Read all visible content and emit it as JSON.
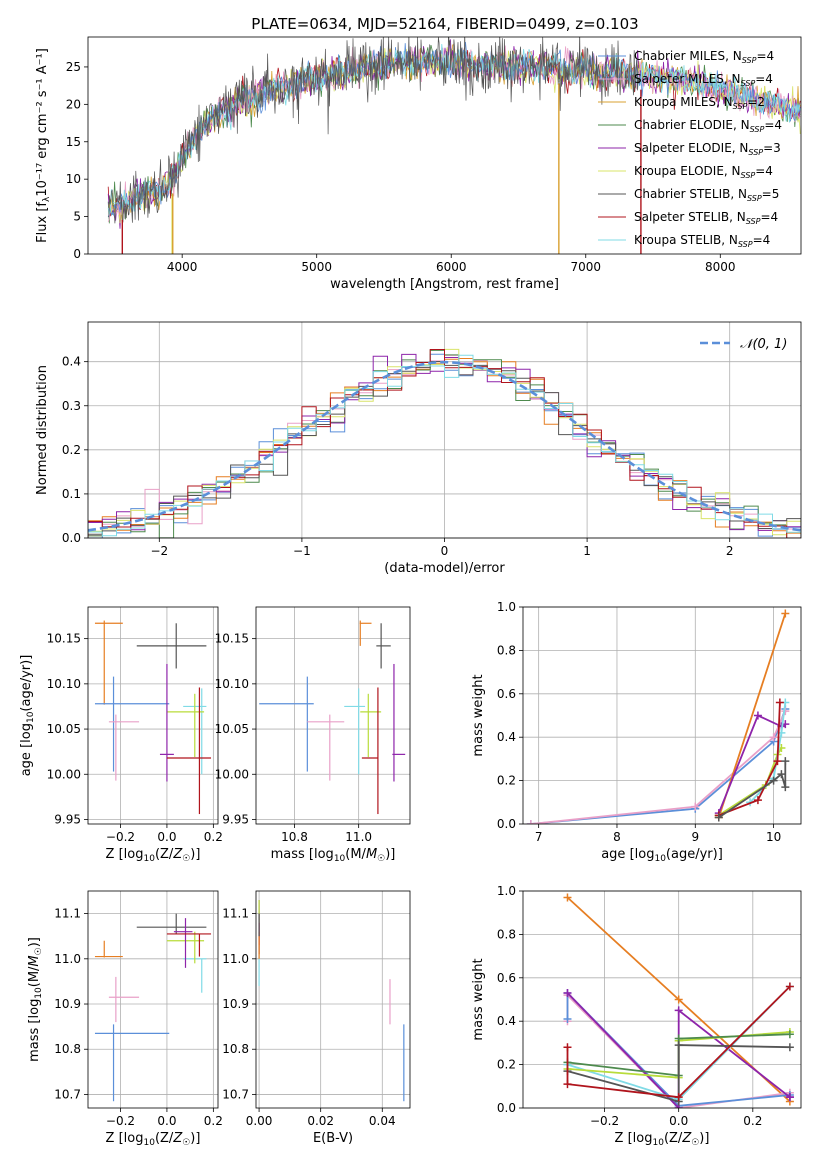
{
  "figure": {
    "title": "PLATE=0634, MJD=52164, FIBERID=0499, z=0.103"
  },
  "colors": {
    "chabrier_miles": "#5b8fd9",
    "salpeter_miles": "#e9a0c8",
    "kroupa_miles": "#d8a030",
    "chabrier_elodie": "#4d8a4d",
    "salpeter_elodie": "#8e24aa",
    "kroupa_elodie": "#d9e46a",
    "chabrier_stelib": "#555555",
    "salpeter_stelib": "#b0141c",
    "kroupa_stelib": "#80dbe6",
    "orange": "#e67e22",
    "lime": "#b8dc3a",
    "gaussian": "#5b8fd9"
  },
  "chart_data": [
    {
      "id": "spectrum",
      "type": "line",
      "xlabel": "wavelength [Angstrom, rest frame]",
      "ylabel": "Flux [fλ10⁻¹⁷ erg cm⁻² s⁻¹ A⁻¹]",
      "xlim": [
        3300,
        8600
      ],
      "ylim": [
        0,
        29
      ],
      "xticks": [
        4000,
        5000,
        6000,
        7000,
        8000
      ],
      "yticks": [
        0,
        5,
        10,
        15,
        20,
        25
      ],
      "grid": false,
      "legend_position": "right",
      "legend": [
        {
          "label": "Chabrier MILES, N",
          "sub": "SSP",
          "n": "=4",
          "color": "chabrier_miles"
        },
        {
          "label": "Salpeter MILES, N",
          "sub": "SSP",
          "n": "=4",
          "color": "salpeter_miles"
        },
        {
          "label": "Kroupa MILES, N",
          "sub": "SSP",
          "n": "=2",
          "color": "kroupa_miles"
        },
        {
          "label": "Chabrier ELODIE, N",
          "sub": "SSP",
          "n": "=4",
          "color": "chabrier_elodie"
        },
        {
          "label": "Salpeter ELODIE, N",
          "sub": "SSP",
          "n": "=3",
          "color": "salpeter_elodie"
        },
        {
          "label": "Kroupa ELODIE, N",
          "sub": "SSP",
          "n": "=4",
          "color": "kroupa_elodie"
        },
        {
          "label": "Chabrier STELIB, N",
          "sub": "SSP",
          "n": "=5",
          "color": "chabrier_stelib"
        },
        {
          "label": "Salpeter STELIB, N",
          "sub": "SSP",
          "n": "=4",
          "color": "salpeter_stelib"
        },
        {
          "label": "Kroupa STELIB, N",
          "sub": "SSP",
          "n": "=4",
          "color": "kroupa_stelib"
        }
      ],
      "continuum_x": [
        3450,
        3550,
        3650,
        3750,
        3850,
        3950,
        4050,
        4200,
        4400,
        4600,
        4800,
        5000,
        5200,
        5400,
        5600,
        5800,
        6000,
        6200,
        6400,
        6600,
        6800,
        7000,
        7200,
        7400,
        7600,
        7800,
        8000,
        8200,
        8400,
        8600
      ],
      "continuum_y": [
        6.0,
        6.5,
        7.5,
        8.0,
        8.5,
        10.5,
        14.5,
        18.0,
        20.0,
        21.5,
        22.5,
        23.5,
        24.2,
        25.0,
        25.5,
        25.7,
        25.8,
        25.5,
        25.2,
        25.0,
        24.8,
        24.5,
        24.2,
        24.0,
        23.5,
        23.0,
        22.0,
        21.0,
        20.0,
        19.0
      ],
      "data_end_x": 7400,
      "model_end_x": 8600
    },
    {
      "id": "residuals",
      "type": "histogram",
      "xlabel": "(data-model)/error",
      "ylabel": "Normed distribution",
      "xlim": [
        -2.5,
        2.5
      ],
      "ylim": [
        0,
        0.49
      ],
      "xticks": [
        -2,
        -1,
        0,
        1,
        2
      ],
      "xtick_labels": [
        "−2",
        "−1",
        "0",
        "1",
        "2"
      ],
      "yticks": [
        0.0,
        0.1,
        0.2,
        0.3,
        0.4
      ],
      "yticklabels": [
        "0.0",
        "0.1",
        "0.2",
        "0.3",
        "0.4"
      ],
      "grid": true,
      "legend": [
        {
          "label": "𝒩(0, 1)",
          "color": "gaussian",
          "dashed": true
        }
      ],
      "bin_width": 0.1,
      "series_colors": [
        "chabrier_miles",
        "salpeter_miles",
        "orange",
        "chabrier_elodie",
        "salpeter_elodie",
        "kroupa_elodie",
        "chabrier_stelib",
        "salpeter_stelib",
        "kroupa_stelib"
      ]
    },
    {
      "id": "age-vs-Z",
      "type": "errorbar",
      "xlabel": "Z [log10(Z/Z☉)]",
      "ylabel": "age  [log10(age/yr)]",
      "xlim": [
        -0.34,
        0.22
      ],
      "ylim": [
        9.945,
        10.185
      ],
      "xticks": [
        -0.2,
        0.0,
        0.2
      ],
      "xtick_labels": [
        "−0.2",
        "0.0",
        "0.2"
      ],
      "yticks": [
        9.95,
        10.0,
        10.05,
        10.1,
        10.15
      ],
      "yticklabels": [
        "9.95",
        "10.00",
        "10.05",
        "10.10",
        "10.15"
      ],
      "grid": true,
      "points": [
        {
          "x": -0.27,
          "xerr": [
            0.04,
            0.08
          ],
          "y": 10.167,
          "yerr": [
            0.09,
            0.003
          ],
          "color": "orange"
        },
        {
          "x": 0.04,
          "xerr": [
            0.17,
            0.13
          ],
          "y": 10.142,
          "yerr": [
            0.025,
            0.025
          ],
          "color": "chabrier_stelib"
        },
        {
          "x": -0.23,
          "xerr": [
            0.08,
            0.24
          ],
          "y": 10.078,
          "yerr": [
            0.075,
            0.03
          ],
          "color": "chabrier_miles"
        },
        {
          "x": 0.15,
          "xerr": [
            0.08,
            0.02
          ],
          "y": 10.075,
          "yerr": [
            0.075,
            0.02
          ],
          "color": "kroupa_stelib"
        },
        {
          "x": 0.12,
          "xerr": [
            0.12,
            0.04
          ],
          "y": 10.069,
          "yerr": [
            0.05,
            0.02
          ],
          "color": "lime"
        },
        {
          "x": -0.22,
          "xerr": [
            0.03,
            0.1
          ],
          "y": 10.058,
          "yerr": [
            0.065,
            0.008
          ],
          "color": "salpeter_miles"
        },
        {
          "x": 0.0,
          "xerr": [
            0.03,
            0.03
          ],
          "y": 10.022,
          "yerr": [
            0.03,
            0.1
          ],
          "color": "salpeter_elodie"
        },
        {
          "x": 0.14,
          "xerr": [
            0.14,
            0.05
          ],
          "y": 10.018,
          "yerr": [
            0.062,
            0.078
          ],
          "color": "salpeter_stelib"
        }
      ]
    },
    {
      "id": "age-vs-mass",
      "type": "errorbar",
      "xlabel": "mass [log10(M/M☉)]",
      "ylabel": "",
      "xlim": [
        10.68,
        11.16
      ],
      "ylim": [
        9.945,
        10.185
      ],
      "xticks": [
        10.8,
        11.0
      ],
      "xtick_labels": [
        "10.8",
        "11.0"
      ],
      "yticks": [
        9.95,
        10.0,
        10.05,
        10.1,
        10.15
      ],
      "yticklabels": [
        "9.95",
        "10.00",
        "10.05",
        "10.10",
        "10.15"
      ],
      "grid": true,
      "points": [
        {
          "x": 11.005,
          "xerr": [
            0.002,
            0.035
          ],
          "y": 10.167,
          "yerr": [
            0.025,
            0.003
          ],
          "color": "orange"
        },
        {
          "x": 11.07,
          "xerr": [
            0.015,
            0.03
          ],
          "y": 10.142,
          "yerr": [
            0.025,
            0.025
          ],
          "color": "chabrier_stelib"
        },
        {
          "x": 10.84,
          "xerr": [
            0.15,
            0.02
          ],
          "y": 10.078,
          "yerr": [
            0.075,
            0.03
          ],
          "color": "chabrier_miles"
        },
        {
          "x": 11.0,
          "xerr": [
            0.045,
            0.02
          ],
          "y": 10.075,
          "yerr": [
            0.075,
            0.02
          ],
          "color": "kroupa_stelib"
        },
        {
          "x": 11.03,
          "xerr": [
            0.025,
            0.04
          ],
          "y": 10.069,
          "yerr": [
            0.05,
            0.02
          ],
          "color": "lime"
        },
        {
          "x": 10.91,
          "xerr": [
            0.07,
            0.045
          ],
          "y": 10.058,
          "yerr": [
            0.065,
            0.008
          ],
          "color": "salpeter_miles"
        },
        {
          "x": 11.11,
          "xerr": [
            0.005,
            0.035
          ],
          "y": 10.022,
          "yerr": [
            0.03,
            0.1
          ],
          "color": "salpeter_elodie"
        },
        {
          "x": 11.06,
          "xerr": [
            0.05,
            0.0
          ],
          "y": 10.018,
          "yerr": [
            0.062,
            0.078
          ],
          "color": "salpeter_stelib"
        }
      ]
    },
    {
      "id": "weight-vs-age",
      "type": "line",
      "xlabel": "age  [log10(age/yr)]",
      "ylabel": "mass weight",
      "xlim": [
        6.8,
        10.35
      ],
      "ylim": [
        0,
        1
      ],
      "xticks": [
        7,
        8,
        9,
        10
      ],
      "xtick_labels": [
        "7",
        "8",
        "9",
        "10"
      ],
      "yticks": [
        0.0,
        0.2,
        0.4,
        0.6,
        0.8,
        1.0
      ],
      "yticklabels": [
        "0.0",
        "0.2",
        "0.4",
        "0.6",
        "0.8",
        "1.0"
      ],
      "grid": true,
      "series": [
        {
          "color": "chabrier_miles",
          "x": [
            6.9,
            9.0,
            10.0,
            10.15
          ],
          "y": [
            0.0,
            0.07,
            0.38,
            0.53
          ]
        },
        {
          "color": "salpeter_miles",
          "x": [
            6.9,
            9.0,
            10.0,
            10.15
          ],
          "y": [
            0.0,
            0.08,
            0.4,
            0.52
          ]
        },
        {
          "color": "orange",
          "x": [
            9.3,
            10.15
          ],
          "y": [
            0.03,
            0.97
          ]
        },
        {
          "color": "salpeter_elodie",
          "x": [
            9.3,
            9.8,
            10.1,
            10.15
          ],
          "y": [
            0.05,
            0.5,
            0.45,
            0.46
          ]
        },
        {
          "color": "lime",
          "x": [
            9.3,
            9.9,
            10.05,
            10.1
          ],
          "y": [
            0.04,
            0.18,
            0.32,
            0.35
          ]
        },
        {
          "color": "kroupa_stelib",
          "x": [
            9.7,
            10.0,
            10.1,
            10.15
          ],
          "y": [
            0.1,
            0.21,
            0.42,
            0.56
          ]
        },
        {
          "color": "salpeter_stelib",
          "x": [
            9.3,
            9.8,
            10.05,
            10.08
          ],
          "y": [
            0.04,
            0.11,
            0.29,
            0.56
          ]
        },
        {
          "color": "chabrier_stelib",
          "x": [
            9.3,
            10.0,
            10.1,
            10.15,
            10.15
          ],
          "y": [
            0.03,
            0.2,
            0.23,
            0.17,
            0.29
          ]
        }
      ]
    },
    {
      "id": "mass-vs-Z",
      "type": "errorbar",
      "xlabel": "Z [log10(Z/Z☉)]",
      "ylabel": "mass [log10(M/M☉)]",
      "xlim": [
        -0.34,
        0.22
      ],
      "ylim": [
        10.67,
        11.15
      ],
      "xticks": [
        -0.2,
        0.0,
        0.2
      ],
      "xtick_labels": [
        "−0.2",
        "0.0",
        "0.2"
      ],
      "yticks": [
        10.7,
        10.8,
        10.9,
        11.0,
        11.1
      ],
      "yticklabels": [
        "10.7",
        "10.8",
        "10.9",
        "11.0",
        "11.1"
      ],
      "grid": true,
      "points": [
        {
          "x": -0.27,
          "xerr": [
            0.04,
            0.08
          ],
          "y": 11.005,
          "yerr": [
            0.002,
            0.035
          ],
          "color": "orange"
        },
        {
          "x": 0.04,
          "xerr": [
            0.17,
            0.13
          ],
          "y": 11.07,
          "yerr": [
            0.015,
            0.03
          ],
          "color": "chabrier_stelib"
        },
        {
          "x": -0.23,
          "xerr": [
            0.08,
            0.24
          ],
          "y": 10.835,
          "yerr": [
            0.15,
            0.02
          ],
          "color": "chabrier_miles"
        },
        {
          "x": 0.15,
          "xerr": [
            0.08,
            0.02
          ],
          "y": 11.0,
          "yerr": [
            0.075,
            0.0
          ],
          "color": "kroupa_stelib"
        },
        {
          "x": 0.12,
          "xerr": [
            0.12,
            0.04
          ],
          "y": 11.04,
          "yerr": [
            0.05,
            0.02
          ],
          "color": "lime"
        },
        {
          "x": -0.22,
          "xerr": [
            0.03,
            0.1
          ],
          "y": 10.915,
          "yerr": [
            0.055,
            0.045
          ],
          "color": "salpeter_miles"
        },
        {
          "x": 0.08,
          "xerr": [
            0.05,
            0.03
          ],
          "y": 11.06,
          "yerr": [
            0.08,
            0.03
          ],
          "color": "salpeter_elodie"
        },
        {
          "x": 0.14,
          "xerr": [
            0.14,
            0.05
          ],
          "y": 11.055,
          "yerr": [
            0.05,
            0.0
          ],
          "color": "salpeter_stelib"
        }
      ]
    },
    {
      "id": "mass-vs-ebv",
      "type": "errorbar",
      "xlabel": "E(B-V)",
      "ylabel": "",
      "xlim": [
        -0.001,
        0.049
      ],
      "ylim": [
        10.67,
        11.15
      ],
      "xticks": [
        0.0,
        0.02,
        0.04
      ],
      "xtick_labels": [
        "0.00",
        "0.02",
        "0.04"
      ],
      "yticks": [
        10.7,
        10.8,
        10.9,
        11.0,
        11.1
      ],
      "yticklabels": [
        "10.7",
        "10.8",
        "10.9",
        "11.0",
        "11.1"
      ],
      "grid": true,
      "points": [
        {
          "x": 0.0,
          "xerr": [
            0,
            0
          ],
          "y": 11.08,
          "yerr": [
            0.05,
            0.05
          ],
          "color": "salpeter_elodie"
        },
        {
          "x": 0.0,
          "xerr": [
            0,
            0
          ],
          "y": 11.0,
          "yerr": [
            0.06,
            0.03
          ],
          "color": "kroupa_stelib"
        },
        {
          "x": 0.0,
          "xerr": [
            0,
            0
          ],
          "y": 11.03,
          "yerr": [
            0.02,
            0.05
          ],
          "color": "salpeter_stelib"
        },
        {
          "x": 0.0,
          "xerr": [
            0,
            0
          ],
          "y": 11.1,
          "yerr": [
            0.02,
            0.03
          ],
          "color": "lime"
        },
        {
          "x": 0.0,
          "xerr": [
            0,
            0
          ],
          "y": 11.04,
          "yerr": [
            0.04,
            0.02
          ],
          "color": "orange"
        },
        {
          "x": 0.0,
          "xerr": [
            0,
            0
          ],
          "y": 11.07,
          "yerr": [
            0.02,
            0.03
          ],
          "color": "chabrier_stelib"
        },
        {
          "x": 0.0425,
          "xerr": [
            0,
            0
          ],
          "y": 10.905,
          "yerr": [
            0.05,
            0.05
          ],
          "color": "salpeter_miles"
        },
        {
          "x": 0.047,
          "xerr": [
            0,
            0
          ],
          "y": 10.77,
          "yerr": [
            0.085,
            0.085
          ],
          "color": "chabrier_miles"
        }
      ]
    },
    {
      "id": "weight-vs-Z",
      "type": "line",
      "xlabel": "Z [log10(Z/Z☉)]",
      "ylabel": "mass weight",
      "xlim": [
        -0.42,
        0.33
      ],
      "ylim": [
        0,
        1
      ],
      "xticks": [
        -0.2,
        0.0,
        0.2
      ],
      "xtick_labels": [
        "−0.2",
        "0.0",
        "0.2"
      ],
      "yticks": [
        0.0,
        0.2,
        0.4,
        0.6,
        0.8,
        1.0
      ],
      "yticklabels": [
        "0.0",
        "0.2",
        "0.4",
        "0.6",
        "0.8",
        "1.0"
      ],
      "grid": true,
      "series": [
        {
          "color": "orange",
          "x": [
            -0.3,
            0.0,
            0.3
          ],
          "y": [
            0.97,
            0.5,
            0.03
          ]
        },
        {
          "color": "salpeter_miles",
          "x": [
            -0.3,
            -0.3,
            0.0,
            0.3,
            0.3
          ],
          "y": [
            0.4,
            0.52,
            0.0,
            0.07,
            0.05
          ]
        },
        {
          "color": "chabrier_miles",
          "x": [
            -0.3,
            -0.3,
            0.0,
            0.3,
            0.3
          ],
          "y": [
            0.41,
            0.53,
            0.01,
            0.06,
            0.05
          ]
        },
        {
          "color": "salpeter_elodie",
          "x": [
            -0.3,
            0.0,
            0.0,
            0.3,
            0.3
          ],
          "y": [
            0.53,
            0.0,
            0.45,
            0.05,
            0.05
          ]
        },
        {
          "color": "kroupa_stelib",
          "x": [
            -0.3,
            0.0,
            0.3
          ],
          "y": [
            0.2,
            0.04,
            0.56
          ]
        },
        {
          "color": "lime",
          "x": [
            -0.3,
            0.0,
            0.0,
            0.3
          ],
          "y": [
            0.18,
            0.14,
            0.31,
            0.35
          ]
        },
        {
          "color": "chabrier_elodie",
          "x": [
            -0.3,
            0.0,
            0.0,
            0.3
          ],
          "y": [
            0.21,
            0.15,
            0.32,
            0.34
          ]
        },
        {
          "color": "chabrier_stelib",
          "x": [
            -0.3,
            0.0,
            0.0,
            0.3
          ],
          "y": [
            0.17,
            0.03,
            0.29,
            0.28
          ]
        },
        {
          "color": "salpeter_stelib",
          "x": [
            -0.3,
            -0.3,
            0.0,
            0.3
          ],
          "y": [
            0.28,
            0.11,
            0.05,
            0.56
          ]
        }
      ]
    }
  ]
}
